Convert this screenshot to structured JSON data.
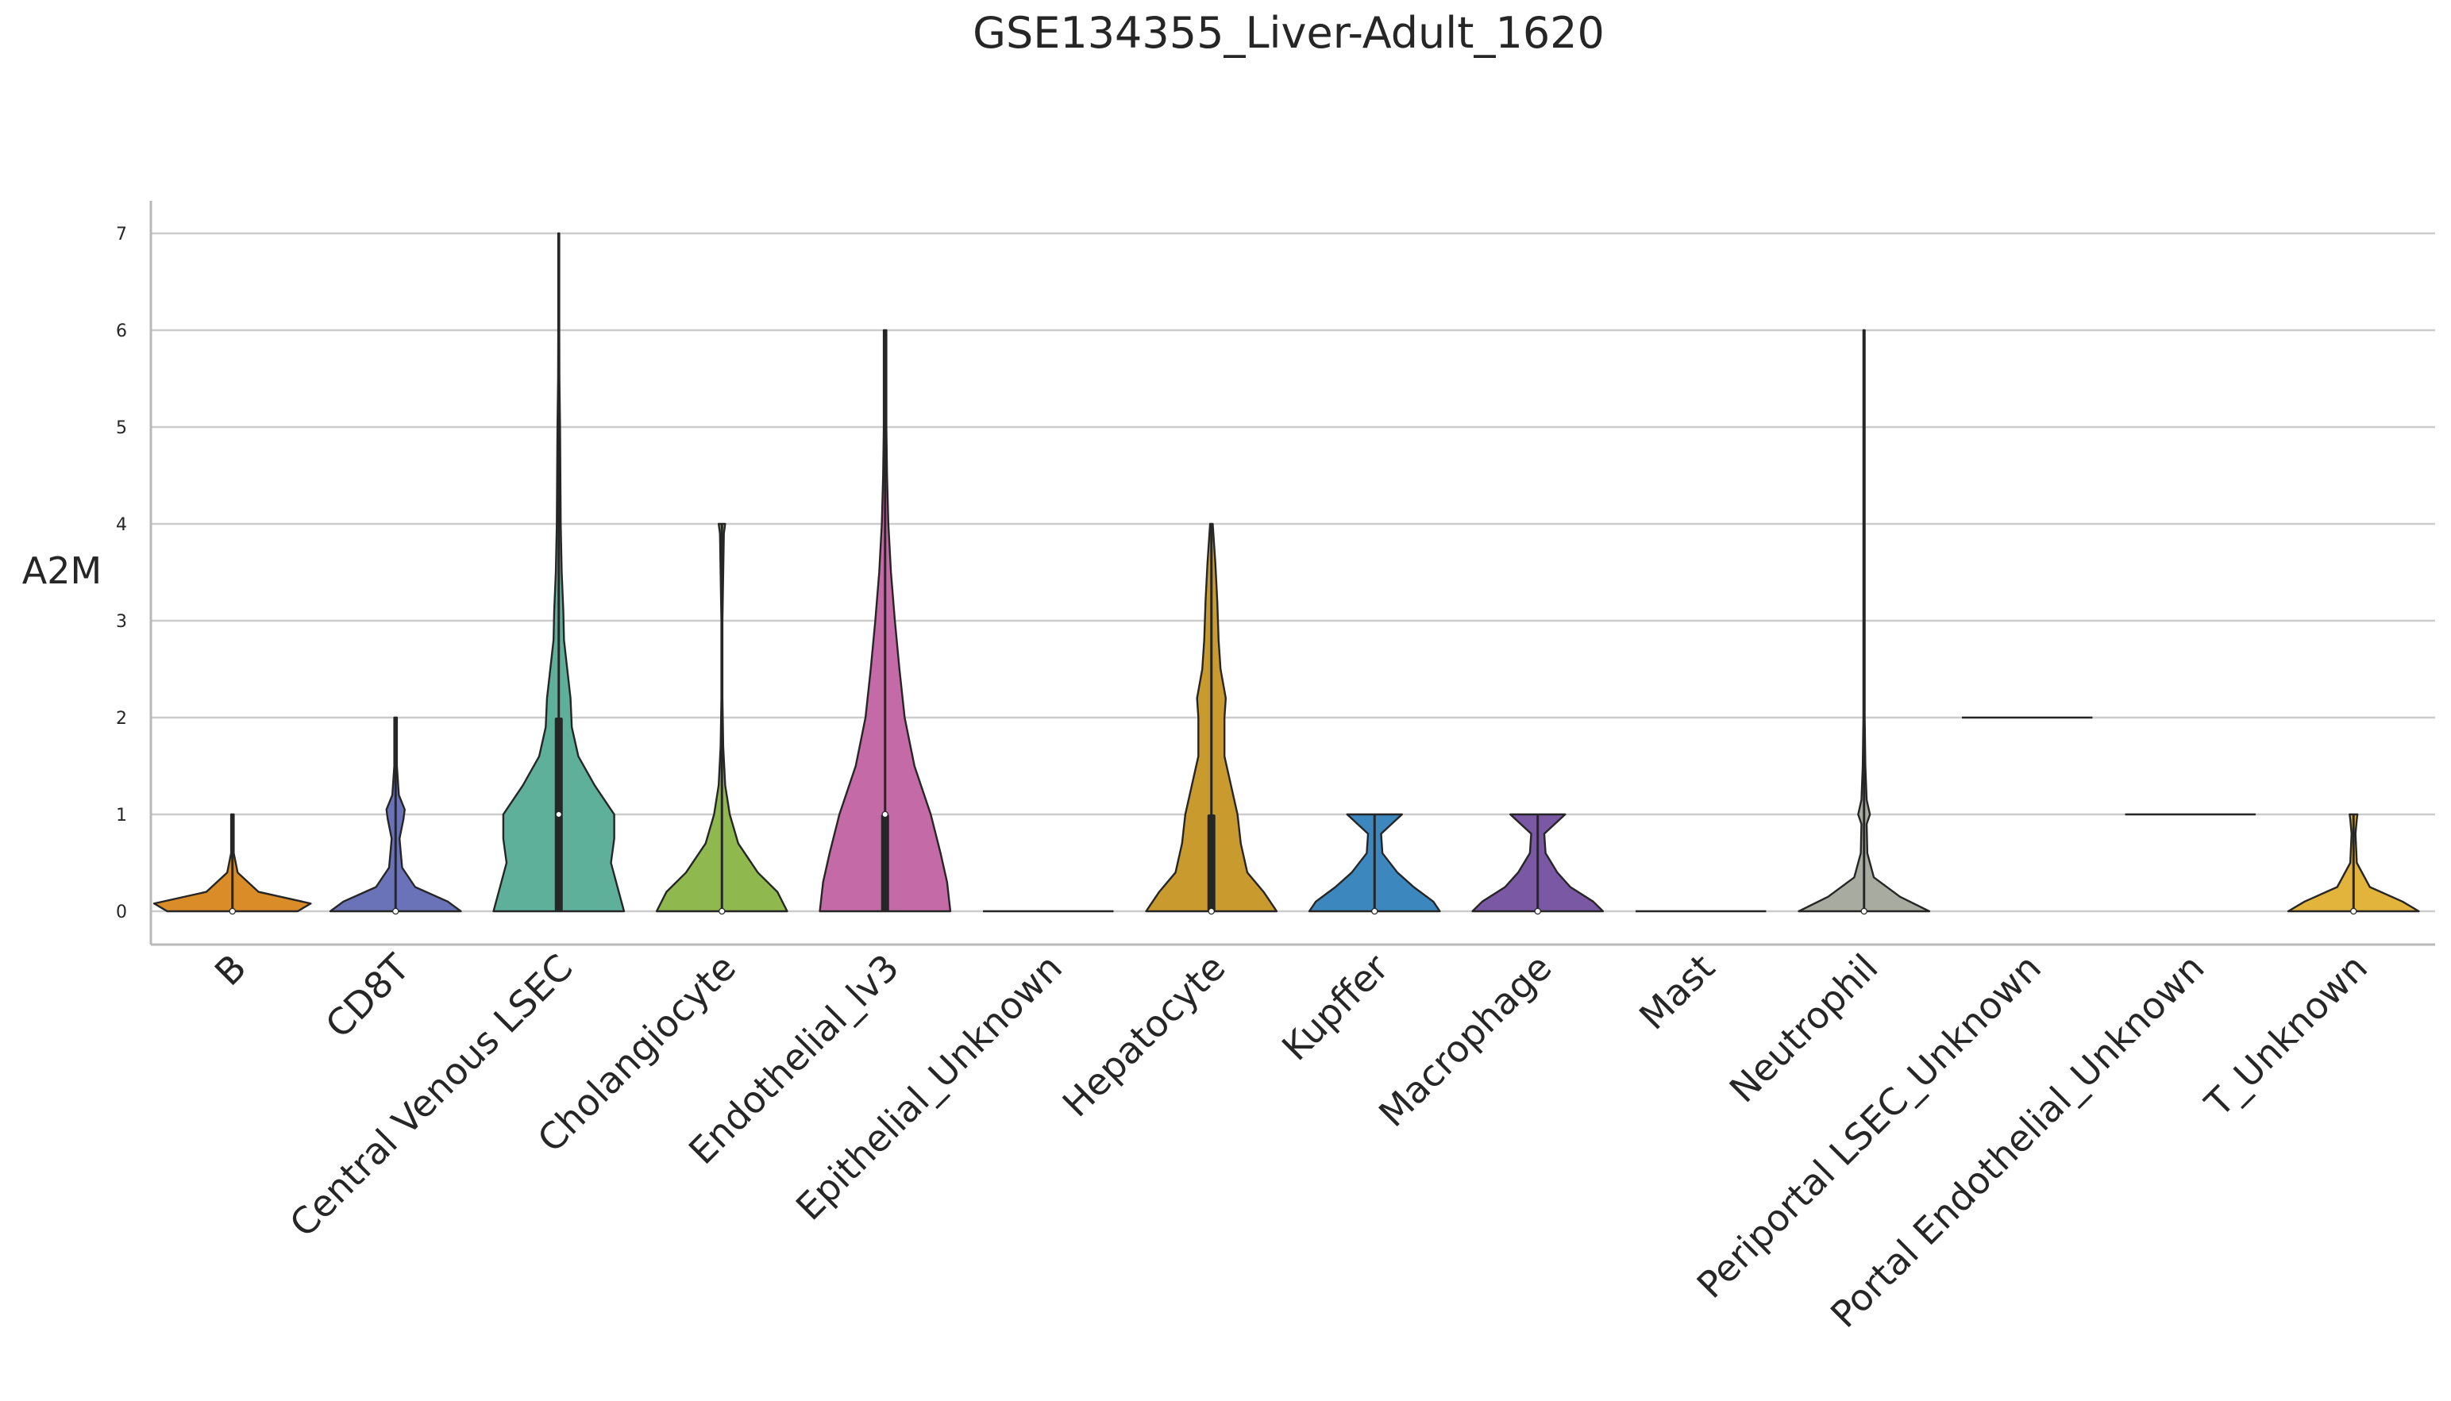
{
  "chart_data": {
    "type": "violin",
    "title": "GSE134355_Liver-Adult_1620",
    "xlabel": "",
    "ylabel": "A2M",
    "ylim": [
      -0.35,
      7.35
    ],
    "yticks": [
      0,
      1,
      2,
      3,
      4,
      5,
      6,
      7
    ],
    "grid": "horizontal",
    "categories": [
      "B",
      "CD8T",
      "Central Venous LSEC",
      "Cholangiocyte",
      "Endothelial_lv3",
      "Epithelial_Unknown",
      "Hepatocyte",
      "Kupffer",
      "Macrophage",
      "Mast",
      "Neutrophil",
      "Periportal LSEC_Unknown",
      "Portal Endothelial_Unknown",
      "T_Unknown"
    ],
    "colors": [
      "#d98c27",
      "#6b73b8",
      "#5fb09a",
      "#8fb84f",
      "#c46aa6",
      "#b0b0b0",
      "#c99a2e",
      "#3d87bf",
      "#7a58a3",
      "#b0b0b0",
      "#a8aca0",
      "#b0b0b0",
      "#b0b0b0",
      "#e3b43c"
    ],
    "series": [
      {
        "min": 0,
        "max": 1,
        "q1": 0,
        "median": 0,
        "q3": 0,
        "density": [
          [
            0,
            1
          ],
          [
            0.08,
            1.2
          ],
          [
            0.2,
            0.4
          ],
          [
            0.4,
            0.08
          ],
          [
            0.6,
            0.02
          ],
          [
            1,
            0.02
          ]
        ]
      },
      {
        "min": 0,
        "max": 2,
        "q1": 0,
        "median": 0,
        "q3": 0,
        "density": [
          [
            0,
            1
          ],
          [
            0.1,
            0.8
          ],
          [
            0.25,
            0.3
          ],
          [
            0.45,
            0.1
          ],
          [
            0.75,
            0.06
          ],
          [
            0.95,
            0.12
          ],
          [
            1.05,
            0.14
          ],
          [
            1.2,
            0.05
          ],
          [
            1.5,
            0.02
          ],
          [
            2,
            0.02
          ]
        ]
      },
      {
        "min": 0,
        "max": 7,
        "q1": 0,
        "median": 1,
        "q3": 2,
        "density": [
          [
            0,
            1
          ],
          [
            0.25,
            0.9
          ],
          [
            0.5,
            0.8
          ],
          [
            0.75,
            0.85
          ],
          [
            1,
            0.85
          ],
          [
            1.3,
            0.55
          ],
          [
            1.6,
            0.3
          ],
          [
            1.9,
            0.2
          ],
          [
            2.2,
            0.18
          ],
          [
            2.5,
            0.13
          ],
          [
            2.8,
            0.08
          ],
          [
            3.1,
            0.07
          ],
          [
            3.5,
            0.045
          ],
          [
            4,
            0.03
          ],
          [
            4.5,
            0.025
          ],
          [
            5,
            0.02
          ],
          [
            5.5,
            0.01
          ],
          [
            6,
            0.008
          ],
          [
            7,
            0.008
          ]
        ]
      },
      {
        "min": 0,
        "max": 4,
        "q1": 0,
        "median": 0,
        "q3": 0,
        "density": [
          [
            0,
            1
          ],
          [
            0.2,
            0.85
          ],
          [
            0.4,
            0.55
          ],
          [
            0.7,
            0.25
          ],
          [
            1,
            0.12
          ],
          [
            1.3,
            0.05
          ],
          [
            1.7,
            0.02
          ],
          [
            2.2,
            0.008
          ],
          [
            3,
            0.008
          ],
          [
            3.9,
            0.03
          ],
          [
            4,
            0.05
          ]
        ]
      },
      {
        "min": 0,
        "max": 6,
        "q1": 0,
        "median": 1,
        "q3": 1,
        "density": [
          [
            0,
            1
          ],
          [
            0.3,
            0.95
          ],
          [
            0.6,
            0.85
          ],
          [
            1,
            0.7
          ],
          [
            1.5,
            0.45
          ],
          [
            2,
            0.3
          ],
          [
            2.5,
            0.22
          ],
          [
            3,
            0.15
          ],
          [
            3.5,
            0.09
          ],
          [
            4,
            0.05
          ],
          [
            4.5,
            0.03
          ],
          [
            5,
            0.02
          ],
          [
            6,
            0.02
          ]
        ]
      },
      {
        "min": 0,
        "max": 0,
        "q1": 0,
        "median": 0,
        "q3": 0,
        "density": [
          [
            0,
            1
          ]
        ]
      },
      {
        "min": 0,
        "max": 4,
        "q1": 0,
        "median": 0,
        "q3": 1,
        "density": [
          [
            0,
            1
          ],
          [
            0.2,
            0.8
          ],
          [
            0.4,
            0.55
          ],
          [
            0.7,
            0.45
          ],
          [
            1,
            0.4
          ],
          [
            1.3,
            0.3
          ],
          [
            1.6,
            0.2
          ],
          [
            2,
            0.2
          ],
          [
            2.2,
            0.22
          ],
          [
            2.5,
            0.14
          ],
          [
            2.8,
            0.11
          ],
          [
            3.2,
            0.09
          ],
          [
            3.6,
            0.06
          ],
          [
            4,
            0.02
          ]
        ]
      },
      {
        "min": 0,
        "max": 1,
        "q1": 0,
        "median": 0,
        "q3": 0,
        "density": [
          [
            0,
            1
          ],
          [
            0.1,
            0.9
          ],
          [
            0.25,
            0.6
          ],
          [
            0.4,
            0.35
          ],
          [
            0.6,
            0.12
          ],
          [
            0.8,
            0.1
          ],
          [
            1,
            0.42
          ]
        ]
      },
      {
        "min": 0,
        "max": 1,
        "q1": 0,
        "median": 0,
        "q3": 0,
        "density": [
          [
            0,
            1
          ],
          [
            0.1,
            0.85
          ],
          [
            0.25,
            0.5
          ],
          [
            0.4,
            0.3
          ],
          [
            0.6,
            0.12
          ],
          [
            0.8,
            0.1
          ],
          [
            1,
            0.42
          ]
        ]
      },
      {
        "min": 0,
        "max": 0,
        "q1": 0,
        "median": 0,
        "q3": 0,
        "density": [
          [
            0,
            1
          ]
        ]
      },
      {
        "min": 0,
        "max": 6,
        "q1": 0,
        "median": 0,
        "q3": 0,
        "density": [
          [
            0,
            1
          ],
          [
            0.15,
            0.55
          ],
          [
            0.35,
            0.15
          ],
          [
            0.6,
            0.05
          ],
          [
            0.9,
            0.04
          ],
          [
            1,
            0.09
          ],
          [
            1.15,
            0.04
          ],
          [
            1.5,
            0.02
          ],
          [
            2,
            0.01
          ],
          [
            6,
            0.01
          ]
        ]
      },
      {
        "min": 2,
        "max": 2,
        "q1": 2,
        "median": 2,
        "q3": 2,
        "density": [
          [
            2,
            1
          ]
        ]
      },
      {
        "min": 1,
        "max": 1,
        "q1": 1,
        "median": 1,
        "q3": 1,
        "density": [
          [
            1,
            1
          ]
        ]
      },
      {
        "min": 0,
        "max": 1,
        "q1": 0,
        "median": 0,
        "q3": 0,
        "density": [
          [
            0,
            1
          ],
          [
            0.1,
            0.75
          ],
          [
            0.25,
            0.25
          ],
          [
            0.5,
            0.05
          ],
          [
            0.8,
            0.03
          ],
          [
            0.95,
            0.05
          ],
          [
            1,
            0.06
          ]
        ]
      }
    ]
  }
}
